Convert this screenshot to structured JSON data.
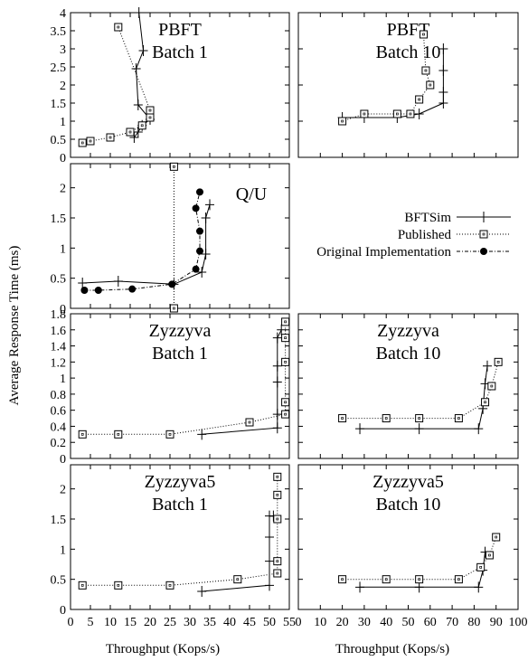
{
  "figure": {
    "ylabel": "Average Response Time (ms)",
    "xlabel_left": "Throughput (Kops/s)",
    "xlabel_right": "Throughput (Kops/s)",
    "legend": {
      "items": [
        {
          "label": "BFTSim",
          "marker": "plus",
          "dash": "solid"
        },
        {
          "label": "Published",
          "marker": "square",
          "dash": "dotted"
        },
        {
          "label": "Original Implementation",
          "marker": "dot",
          "dash": "dashdot"
        }
      ]
    }
  },
  "chart_data": [
    {
      "id": "pbft1",
      "type": "line",
      "title": [
        "PBFT",
        "Batch 1"
      ],
      "xlim": [
        0,
        55
      ],
      "ylim": [
        0,
        4
      ],
      "xticks": [
        0,
        5,
        10,
        15,
        20,
        25,
        30,
        35,
        40,
        45,
        50,
        55
      ],
      "yticks": [
        0,
        0.5,
        1,
        1.5,
        2,
        2.5,
        3,
        3.5,
        4
      ],
      "ytick_labels": [
        "0",
        "0.5",
        "1",
        "1.5",
        "2",
        "2.5",
        "3",
        "3.5",
        "4"
      ],
      "show_xtick_labels": false,
      "show_ytick_labels": true,
      "series": [
        {
          "style": "BFTSim",
          "points": [
            [
              16,
              0.55
            ],
            [
              17,
              0.7
            ],
            [
              18,
              0.88
            ],
            [
              20,
              1.05
            ],
            [
              17,
              1.45
            ],
            [
              16.5,
              2.45
            ],
            [
              18.3,
              2.95
            ],
            [
              17.2,
              4.0
            ]
          ]
        },
        {
          "style": "Published",
          "points": [
            [
              3,
              0.4
            ],
            [
              5,
              0.45
            ],
            [
              10,
              0.55
            ],
            [
              15,
              0.7
            ],
            [
              18,
              0.88
            ],
            [
              20,
              1.1
            ],
            [
              20,
              1.3
            ],
            [
              12,
              3.6
            ]
          ]
        }
      ]
    },
    {
      "id": "pbft10",
      "type": "line",
      "title": [
        "PBFT",
        "Batch 10"
      ],
      "xlim": [
        0,
        100
      ],
      "ylim": [
        0,
        2
      ],
      "xticks": [
        0,
        10,
        20,
        30,
        40,
        50,
        60,
        70,
        80,
        90,
        100
      ],
      "yticks": [
        0,
        0.5,
        1,
        1.5,
        2
      ],
      "show_xtick_labels": false,
      "show_ytick_labels": false,
      "series": [
        {
          "style": "BFTSim",
          "points": [
            [
              20,
              0.55
            ],
            [
              30,
              0.55
            ],
            [
              45,
              0.55
            ],
            [
              55,
              0.6
            ],
            [
              66,
              0.75
            ],
            [
              66,
              0.9
            ],
            [
              66,
              1.2
            ],
            [
              66,
              1.5
            ]
          ]
        },
        {
          "style": "Published",
          "points": [
            [
              20,
              0.5
            ],
            [
              30,
              0.6
            ],
            [
              45,
              0.6
            ],
            [
              51,
              0.6
            ],
            [
              55,
              0.8
            ],
            [
              60,
              1.0
            ],
            [
              58,
              1.2
            ],
            [
              57,
              1.7
            ]
          ]
        }
      ]
    },
    {
      "id": "qu",
      "type": "line",
      "title": [
        "Q/U"
      ],
      "xlim": [
        0,
        55
      ],
      "ylim": [
        0,
        2.4
      ],
      "xticks": [
        0,
        5,
        10,
        15,
        20,
        25,
        30,
        35,
        40,
        45,
        50,
        55
      ],
      "yticks": [
        0,
        0.5,
        1,
        1.5,
        2
      ],
      "ytick_labels": [
        "0",
        "0.5",
        "1",
        "1.5",
        "2"
      ],
      "show_xtick_labels": false,
      "show_ytick_labels": true,
      "series": [
        {
          "style": "BFTSim",
          "points": [
            [
              3,
              0.42
            ],
            [
              12,
              0.45
            ],
            [
              26,
              0.4
            ],
            [
              33,
              0.6
            ],
            [
              34,
              0.9
            ],
            [
              34,
              1.5
            ],
            [
              35,
              1.72
            ]
          ]
        },
        {
          "style": "Published",
          "points": [
            [
              26,
              0.0
            ],
            [
              26,
              2.35
            ]
          ]
        },
        {
          "style": "Original Implementation",
          "points": [
            [
              3.5,
              0.3
            ],
            [
              7,
              0.3
            ],
            [
              15.5,
              0.32
            ],
            [
              25.5,
              0.4
            ],
            [
              31.5,
              0.65
            ],
            [
              32.5,
              0.95
            ],
            [
              32.5,
              1.28
            ],
            [
              31.5,
              1.66
            ],
            [
              32.5,
              1.93
            ]
          ]
        }
      ]
    },
    {
      "id": "zyz1",
      "type": "line",
      "title": [
        "Zyzzyva",
        "Batch 1"
      ],
      "xlim": [
        0,
        55
      ],
      "ylim": [
        0,
        1.8
      ],
      "xticks": [
        0,
        5,
        10,
        15,
        20,
        25,
        30,
        35,
        40,
        45,
        50,
        55
      ],
      "yticks": [
        0,
        0.2,
        0.4,
        0.6,
        0.8,
        1,
        1.2,
        1.4,
        1.6,
        1.8
      ],
      "ytick_labels": [
        "0",
        "0.2",
        "0.4",
        "0.6",
        "0.8",
        "1",
        "1.2",
        "1.4",
        "1.6",
        "1.8"
      ],
      "show_xtick_labels": false,
      "show_ytick_labels": true,
      "series": [
        {
          "style": "BFTSim",
          "points": [
            [
              33,
              0.3
            ],
            [
              52,
              0.38
            ],
            [
              52,
              0.55
            ],
            [
              52,
              0.95
            ],
            [
              52,
              1.15
            ],
            [
              52,
              1.5
            ],
            [
              53,
              1.6
            ]
          ]
        },
        {
          "style": "Published",
          "points": [
            [
              3,
              0.3
            ],
            [
              12,
              0.3
            ],
            [
              25,
              0.3
            ],
            [
              45,
              0.45
            ],
            [
              54,
              0.55
            ],
            [
              54,
              0.7
            ],
            [
              54,
              1.2
            ],
            [
              54,
              1.5
            ],
            [
              54,
              1.7
            ]
          ]
        }
      ]
    },
    {
      "id": "zyz10",
      "type": "line",
      "title": [
        "Zyzzyva",
        "Batch 10"
      ],
      "xlim": [
        0,
        100
      ],
      "ylim": [
        0,
        1.8
      ],
      "xticks": [
        0,
        10,
        20,
        30,
        40,
        50,
        60,
        70,
        80,
        90,
        100
      ],
      "yticks": [
        0,
        0.2,
        0.4,
        0.6,
        0.8,
        1,
        1.2,
        1.4,
        1.6,
        1.8
      ],
      "show_xtick_labels": false,
      "show_ytick_labels": false,
      "series": [
        {
          "style": "BFTSim",
          "points": [
            [
              28,
              0.37
            ],
            [
              55,
              0.37
            ],
            [
              82,
              0.37
            ],
            [
              84,
              0.62
            ],
            [
              85,
              0.93
            ],
            [
              86,
              1.15
            ]
          ]
        },
        {
          "style": "Published",
          "points": [
            [
              20,
              0.5
            ],
            [
              40,
              0.5
            ],
            [
              55,
              0.5
            ],
            [
              73,
              0.5
            ],
            [
              85,
              0.7
            ],
            [
              88,
              0.9
            ],
            [
              91,
              1.2
            ]
          ]
        }
      ]
    },
    {
      "id": "zyz5_1",
      "type": "line",
      "title": [
        "Zyzzyva5",
        "Batch 1"
      ],
      "xlim": [
        0,
        55
      ],
      "ylim": [
        0,
        2.4
      ],
      "xticks": [
        0,
        5,
        10,
        15,
        20,
        25,
        30,
        35,
        40,
        45,
        50,
        55
      ],
      "xtick_labels": [
        "0",
        "5",
        "10",
        "15",
        "20",
        "25",
        "30",
        "35",
        "40",
        "45",
        "50",
        "55"
      ],
      "yticks": [
        0,
        0.5,
        1,
        1.5,
        2
      ],
      "ytick_labels": [
        "0",
        "0.5",
        "1",
        "1.5",
        "2"
      ],
      "show_xtick_labels": true,
      "show_ytick_labels": true,
      "series": [
        {
          "style": "BFTSim",
          "points": [
            [
              33,
              0.3
            ],
            [
              50,
              0.4
            ],
            [
              50,
              0.8
            ],
            [
              50,
              1.2
            ],
            [
              50,
              1.55
            ],
            [
              51,
              1.55
            ]
          ]
        },
        {
          "style": "Published",
          "points": [
            [
              3,
              0.4
            ],
            [
              12,
              0.4
            ],
            [
              25,
              0.4
            ],
            [
              42,
              0.5
            ],
            [
              52,
              0.6
            ],
            [
              52,
              0.8
            ],
            [
              52,
              1.5
            ],
            [
              52,
              1.9
            ],
            [
              52,
              2.2
            ]
          ]
        }
      ]
    },
    {
      "id": "zyz5_10",
      "type": "line",
      "title": [
        "Zyzzyva5",
        "Batch 10"
      ],
      "xlim": [
        0,
        100
      ],
      "ylim": [
        0,
        2.4
      ],
      "xticks": [
        0,
        10,
        20,
        30,
        40,
        50,
        60,
        70,
        80,
        90,
        100
      ],
      "xtick_labels": [
        "0",
        "10",
        "20",
        "30",
        "40",
        "50",
        "60",
        "70",
        "80",
        "90",
        "100"
      ],
      "yticks": [
        0,
        0.5,
        1,
        1.5,
        2
      ],
      "show_xtick_labels": true,
      "show_ytick_labels": false,
      "series": [
        {
          "style": "BFTSim",
          "points": [
            [
              28,
              0.37
            ],
            [
              55,
              0.37
            ],
            [
              82,
              0.37
            ],
            [
              84,
              0.65
            ],
            [
              85,
              0.95
            ]
          ]
        },
        {
          "style": "Published",
          "points": [
            [
              20,
              0.5
            ],
            [
              40,
              0.5
            ],
            [
              55,
              0.5
            ],
            [
              73,
              0.5
            ],
            [
              83,
              0.7
            ],
            [
              87,
              0.9
            ],
            [
              90,
              1.2
            ]
          ]
        }
      ]
    }
  ]
}
